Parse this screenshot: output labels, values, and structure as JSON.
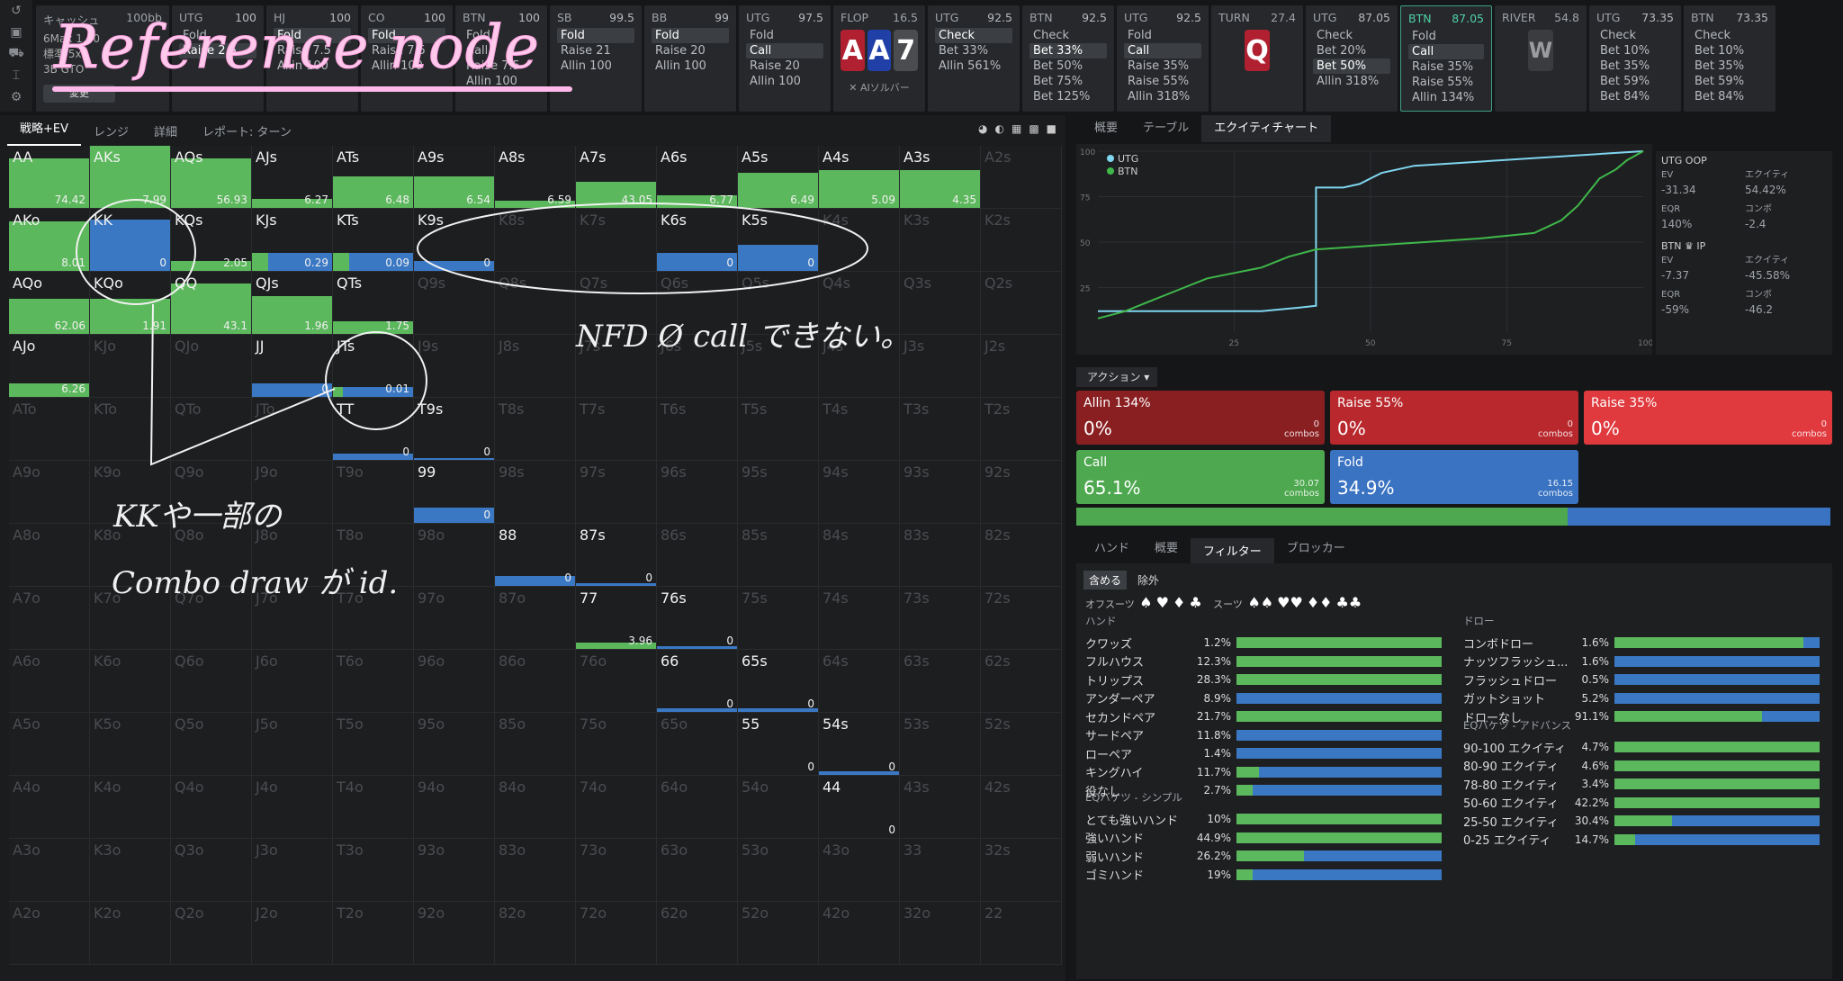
{
  "title_annotation": "Reference node",
  "handwritten_notes": [
    "NFD Ø call できない。",
    "KKや一部の",
    "Combo draw が id."
  ],
  "sidebar_icons": [
    "undo-icon",
    "save-icon",
    "car-icon",
    "chart-icon",
    "settings-icon"
  ],
  "cash": {
    "label": "キャッシュ",
    "bb": "100bb",
    "lines": [
      "6Max  1.50",
      "標準  5x",
      "3B  GTO"
    ],
    "button": "変更"
  },
  "topbar": [
    {
      "pos": "UTG",
      "stack": "100",
      "actions": [
        {
          "t": "Fold",
          "s": false
        },
        {
          "t": "Raise 2.5",
          "s": true
        }
      ]
    },
    {
      "pos": "HJ",
      "stack": "100",
      "actions": [
        {
          "t": "Fold",
          "s": true
        },
        {
          "t": "Raise 7.5",
          "s": false
        },
        {
          "t": "Allin 100",
          "s": false
        }
      ]
    },
    {
      "pos": "CO",
      "stack": "100",
      "actions": [
        {
          "t": "Fold",
          "s": true
        },
        {
          "t": "Raise 7.5",
          "s": false
        },
        {
          "t": "Allin 100",
          "s": false
        }
      ]
    },
    {
      "pos": "BTN",
      "stack": "100",
      "actions": [
        {
          "t": "Fold",
          "s": false
        },
        {
          "t": "Call",
          "s": false
        },
        {
          "t": "Raise 7.5",
          "s": false
        },
        {
          "t": "Allin 100",
          "s": false
        }
      ]
    },
    {
      "pos": "SB",
      "stack": "99.5",
      "actions": [
        {
          "t": "Fold",
          "s": true
        },
        {
          "t": "Raise 21",
          "s": false
        },
        {
          "t": "Allin 100",
          "s": false
        }
      ]
    },
    {
      "pos": "BB",
      "stack": "99",
      "actions": [
        {
          "t": "Fold",
          "s": true
        },
        {
          "t": "Raise 20",
          "s": false
        },
        {
          "t": "Allin 100",
          "s": false
        }
      ]
    },
    {
      "pos": "UTG",
      "stack": "97.5",
      "actions": [
        {
          "t": "Fold",
          "s": false
        },
        {
          "t": "Call",
          "s": true
        },
        {
          "t": "Raise 20",
          "s": false
        },
        {
          "t": "Allin 100",
          "s": false
        }
      ]
    }
  ],
  "flop": {
    "label": "FLOP",
    "pot": "16.5",
    "cards": [
      "A",
      "A",
      "7"
    ],
    "ai": "AIソルバー"
  },
  "topbar2": [
    {
      "pos": "UTG",
      "stack": "92.5",
      "actions": [
        {
          "t": "Check",
          "s": true
        },
        {
          "t": "Bet 33%",
          "s": false
        },
        {
          "t": "Allin 561%",
          "s": false
        }
      ]
    },
    {
      "pos": "BTN",
      "stack": "92.5",
      "actions": [
        {
          "t": "Check",
          "s": false
        },
        {
          "t": "Bet 33%",
          "s": true
        },
        {
          "t": "Bet 50%",
          "s": false
        },
        {
          "t": "Bet 75%",
          "s": false
        },
        {
          "t": "Bet 125%",
          "s": false
        }
      ]
    },
    {
      "pos": "UTG",
      "stack": "92.5",
      "actions": [
        {
          "t": "Fold",
          "s": false
        },
        {
          "t": "Call",
          "s": true
        },
        {
          "t": "Raise 35%",
          "s": false
        },
        {
          "t": "Raise 55%",
          "s": false
        },
        {
          "t": "Allin 318%",
          "s": false
        }
      ]
    }
  ],
  "turn": {
    "label": "TURN",
    "pot": "27.4",
    "card": "Q"
  },
  "topbar3": [
    {
      "pos": "UTG",
      "stack": "87.05",
      "active": false,
      "actions": [
        {
          "t": "Check",
          "s": false
        },
        {
          "t": "Bet 20%",
          "s": false
        },
        {
          "t": "Bet 50%",
          "s": true
        },
        {
          "t": "Allin 318%",
          "s": false
        }
      ]
    },
    {
      "pos": "BTN",
      "stack": "87.05",
      "active": true,
      "actions": [
        {
          "t": "Fold",
          "s": false
        },
        {
          "t": "Call",
          "s": true
        },
        {
          "t": "Raise 35%",
          "s": false
        },
        {
          "t": "Raise 55%",
          "s": false
        },
        {
          "t": "Allin 134%",
          "s": false
        }
      ]
    }
  ],
  "river": {
    "label": "RIVER",
    "pot": "54.8",
    "card": "W"
  },
  "topbar4": [
    {
      "pos": "UTG",
      "stack": "73.35",
      "actions": [
        {
          "t": "Check",
          "s": false
        },
        {
          "t": "Bet 10%",
          "s": false
        },
        {
          "t": "Bet 35%",
          "s": false
        },
        {
          "t": "Bet 59%",
          "s": false
        },
        {
          "t": "Bet 84%",
          "s": false
        }
      ]
    },
    {
      "pos": "BTN",
      "stack": "73.35",
      "actions": [
        {
          "t": "Check",
          "s": false
        },
        {
          "t": "Bet 10%",
          "s": false
        },
        {
          "t": "Bet 35%",
          "s": false
        },
        {
          "t": "Bet 59%",
          "s": false
        },
        {
          "t": "Bet 84%",
          "s": false
        }
      ]
    }
  ],
  "left_tabs": [
    "戦略+EV",
    "レンジ",
    "詳細",
    "レポート: ターン"
  ],
  "grid": [
    [
      "AA",
      "AKs",
      "AQs",
      "AJs",
      "ATs",
      "A9s",
      "A8s",
      "A7s",
      "A6s",
      "A5s",
      "A4s",
      "A3s",
      "A2s"
    ],
    [
      "AKo",
      "KK",
      "KQs",
      "KJs",
      "KTs",
      "K9s",
      "K8s",
      "K7s",
      "K6s",
      "K5s",
      "K4s",
      "K3s",
      "K2s"
    ],
    [
      "AQo",
      "KQo",
      "QQ",
      "QJs",
      "QTs",
      "Q9s",
      "Q8s",
      "Q7s",
      "Q6s",
      "Q5s",
      "Q4s",
      "Q3s",
      "Q2s"
    ],
    [
      "AJo",
      "KJo",
      "QJo",
      "JJ",
      "JTs",
      "J9s",
      "J8s",
      "J7s",
      "J6s",
      "J5s",
      "J4s",
      "J3s",
      "J2s"
    ],
    [
      "ATo",
      "KTo",
      "QTo",
      "JTo",
      "TT",
      "T9s",
      "T8s",
      "T7s",
      "T6s",
      "T5s",
      "T4s",
      "T3s",
      "T2s"
    ],
    [
      "A9o",
      "K9o",
      "Q9o",
      "J9o",
      "T9o",
      "99",
      "98s",
      "97s",
      "96s",
      "95s",
      "94s",
      "93s",
      "92s"
    ],
    [
      "A8o",
      "K8o",
      "Q8o",
      "J8o",
      "T8o",
      "98o",
      "88",
      "87s",
      "86s",
      "85s",
      "84s",
      "83s",
      "82s"
    ],
    [
      "A7o",
      "K7o",
      "Q7o",
      "J7o",
      "T7o",
      "97o",
      "87o",
      "77",
      "76s",
      "75s",
      "74s",
      "73s",
      "72s"
    ],
    [
      "A6o",
      "K6o",
      "Q6o",
      "J6o",
      "T6o",
      "96o",
      "86o",
      "76o",
      "66",
      "65s",
      "64s",
      "63s",
      "62s"
    ],
    [
      "A5o",
      "K5o",
      "Q5o",
      "J5o",
      "T5o",
      "95o",
      "85o",
      "75o",
      "65o",
      "55",
      "54s",
      "53s",
      "52s"
    ],
    [
      "A4o",
      "K4o",
      "Q4o",
      "J4o",
      "T4o",
      "94o",
      "84o",
      "74o",
      "64o",
      "54o",
      "44",
      "43s",
      "42s"
    ],
    [
      "A3o",
      "K3o",
      "Q3o",
      "J3o",
      "T3o",
      "93o",
      "83o",
      "73o",
      "63o",
      "53o",
      "43o",
      "33",
      "32s"
    ],
    [
      "A2o",
      "K2o",
      "Q2o",
      "J2o",
      "T2o",
      "92o",
      "82o",
      "72o",
      "62o",
      "52o",
      "42o",
      "32o",
      "22"
    ]
  ],
  "cell_data": {
    "AA": {
      "num": "74.42",
      "g": 1.0,
      "h": 0.78
    },
    "AKs": {
      "num": "7.99",
      "g": 1.0,
      "h": 1.0
    },
    "AQs": {
      "num": "56.93",
      "g": 1.0,
      "h": 0.78
    },
    "AJs": {
      "num": "6.27",
      "g": 1.0,
      "h": 0.14
    },
    "ATs": {
      "num": "6.48",
      "g": 1.0,
      "h": 0.5
    },
    "A9s": {
      "num": "6.54",
      "g": 1.0,
      "h": 0.5
    },
    "A8s": {
      "num": "6.59",
      "g": 1.0,
      "h": 0.12
    },
    "A7s": {
      "num": "43.05",
      "g": 1.0,
      "h": 0.42
    },
    "A6s": {
      "num": "6.77",
      "g": 1.0,
      "h": 0.2
    },
    "A5s": {
      "num": "6.49",
      "g": 1.0,
      "h": 0.55
    },
    "A4s": {
      "num": "5.09",
      "g": 1.0,
      "h": 0.6
    },
    "A3s": {
      "num": "4.35",
      "g": 1.0,
      "h": 0.6
    },
    "AKo": {
      "num": "8.01",
      "g": 1.0,
      "h": 0.78
    },
    "KK": {
      "num": "0",
      "g": 0.0,
      "h": 0.82
    },
    "KQs": {
      "num": "2.05",
      "g": 1.0,
      "h": 0.15
    },
    "KJs": {
      "num": "0.29",
      "g": 0.2,
      "h": 0.28
    },
    "KTs": {
      "num": "0.09",
      "g": 0.2,
      "h": 0.28
    },
    "K9s": {
      "num": "0",
      "g": 0.0,
      "h": 0.16
    },
    "K6s": {
      "num": "0",
      "g": 0.0,
      "h": 0.28
    },
    "K5s": {
      "num": "0",
      "g": 0.0,
      "h": 0.42
    },
    "AQo": {
      "num": "62.06",
      "g": 1.0,
      "h": 0.55
    },
    "KQo": {
      "num": "1.91",
      "g": 1.0,
      "h": 0.55
    },
    "QQ": {
      "num": "43.1",
      "g": 1.0,
      "h": 0.8
    },
    "QJs": {
      "num": "1.96",
      "g": 1.0,
      "h": 0.6
    },
    "QTs": {
      "num": "1.75",
      "g": 1.0,
      "h": 0.2
    },
    "AJo": {
      "num": "6.26",
      "g": 1.0,
      "h": 0.22
    },
    "JJ": {
      "num": "0",
      "g": 0.0,
      "h": 0.22
    },
    "JTs": {
      "num": "0.01",
      "g": 0.12,
      "h": 0.16
    },
    "TT": {
      "num": "0",
      "g": 0.0,
      "h": 0.1
    },
    "T9s": {
      "num": "0",
      "g": 0.0,
      "h": 0.03
    },
    "99": {
      "num": "0",
      "g": 0.0,
      "h": 0.24
    },
    "88": {
      "num": "0",
      "g": 0.0,
      "h": 0.16
    },
    "87s": {
      "num": "0",
      "g": 0.0,
      "h": 0.04
    },
    "77": {
      "num": "3.96",
      "g": 1.0,
      "h": 0.1
    },
    "76s": {
      "num": "0",
      "g": 0.0,
      "h": 0.04
    },
    "66": {
      "num": "0",
      "g": 0.0,
      "h": 0.05
    },
    "65s": {
      "num": "0",
      "g": 0.0,
      "h": 0.05
    },
    "55": {
      "num": "0",
      "g": 0.0,
      "h": 0.0
    },
    "54s": {
      "num": "0",
      "g": 0.0,
      "h": 0.05
    },
    "44": {
      "num": "0",
      "g": 0.0,
      "h": 0.0
    }
  },
  "right_tabs": [
    "概要",
    "テーブル",
    "エクイティチャート"
  ],
  "chart_data": {
    "type": "line",
    "x_ticks": [
      "25",
      "50",
      "75",
      "100"
    ],
    "y_ticks": [
      "100",
      "75",
      "50",
      "25"
    ],
    "xlim": [
      0,
      100
    ],
    "ylim": [
      0,
      100
    ],
    "series": [
      {
        "name": "UTG",
        "color": "#7fd6f0",
        "points": [
          [
            0,
            12
          ],
          [
            20,
            12
          ],
          [
            30,
            12
          ],
          [
            37,
            14
          ],
          [
            40,
            15
          ],
          [
            40,
            80
          ],
          [
            45,
            80
          ],
          [
            48,
            82
          ],
          [
            52,
            88
          ],
          [
            58,
            92
          ],
          [
            100,
            100
          ]
        ]
      },
      {
        "name": "BTN",
        "color": "#3fb84a",
        "points": [
          [
            0,
            8
          ],
          [
            5,
            12
          ],
          [
            10,
            18
          ],
          [
            15,
            24
          ],
          [
            20,
            30
          ],
          [
            25,
            33
          ],
          [
            30,
            36
          ],
          [
            35,
            42
          ],
          [
            40,
            46
          ],
          [
            45,
            47
          ],
          [
            50,
            48
          ],
          [
            60,
            50
          ],
          [
            70,
            52
          ],
          [
            80,
            55
          ],
          [
            85,
            62
          ],
          [
            88,
            70
          ],
          [
            92,
            85
          ],
          [
            95,
            90
          ],
          [
            97,
            95
          ],
          [
            100,
            100
          ]
        ]
      }
    ]
  },
  "utg_stats": {
    "title": "UTG  OOP",
    "ev_label": "EV",
    "ev": "-31.34",
    "eq_label": "エクイティ",
    "eq": "54.42%",
    "eqr_label": "EQR",
    "eqr": "140%",
    "combo_label": "コンボ",
    "combo": "-2.4"
  },
  "btn_stats": {
    "title": "BTN ♛  IP",
    "ev_label": "EV",
    "ev": "-7.37",
    "eq_label": "エクイティ",
    "eq": "-45.58%",
    "eqr_label": "EQR",
    "eqr": "-59%",
    "combo_label": "コンボ",
    "combo": "-46.2"
  },
  "action_header": "アクション",
  "actions": [
    {
      "name": "Allin 134%",
      "pct": "0%",
      "combos": "0",
      "combos_label": "combos",
      "color": "#8a1f22"
    },
    {
      "name": "Raise 55%",
      "pct": "0%",
      "combos": "0",
      "combos_label": "combos",
      "color": "#b8282d"
    },
    {
      "name": "Raise 35%",
      "pct": "0%",
      "combos": "0",
      "combos_label": "combos",
      "color": "#e0393e"
    },
    {
      "name": "Call",
      "pct": "65.1%",
      "combos": "30.07",
      "combos_label": "combos",
      "color": "#4ea84f"
    },
    {
      "name": "Fold",
      "pct": "34.9%",
      "combos": "16.15",
      "combos_label": "combos",
      "color": "#3a73c2"
    }
  ],
  "mix": {
    "call": 65.1,
    "fold": 34.9
  },
  "filter_tabs": [
    "ハンド",
    "概要",
    "フィルター",
    "ブロッカー"
  ],
  "include": [
    "含める",
    "除外"
  ],
  "suits_labels": {
    "off": "オフスーツ",
    "suited": "スーツ"
  },
  "hands_section": "ハンド",
  "hands": [
    {
      "n": "クワッズ",
      "p": "1.2%",
      "g": 1.0
    },
    {
      "n": "フルハウス",
      "p": "12.3%",
      "g": 1.0
    },
    {
      "n": "トリップス",
      "p": "28.3%",
      "g": 1.0
    },
    {
      "n": "アンダーペア",
      "p": "8.9%",
      "g": 0.0
    },
    {
      "n": "セカンドペア",
      "p": "21.7%",
      "g": 1.0
    },
    {
      "n": "サードペア",
      "p": "11.8%",
      "g": 0.0
    },
    {
      "n": "ローペア",
      "p": "1.4%",
      "g": 0.0
    },
    {
      "n": "キングハイ",
      "p": "11.7%",
      "g": 0.11
    },
    {
      "n": "役なし",
      "p": "2.7%",
      "g": 0.08
    }
  ],
  "eq_simple_section": "EQバケツ - シンプル",
  "eq_simple": [
    {
      "n": "とても強いハンド",
      "p": "10%",
      "g": 1.0
    },
    {
      "n": "強いハンド",
      "p": "44.9%",
      "g": 1.0
    },
    {
      "n": "弱いハンド",
      "p": "26.2%",
      "g": 0.33
    },
    {
      "n": "ゴミハンド",
      "p": "19%",
      "g": 0.08
    }
  ],
  "draws_section": "ドロー",
  "draws": [
    {
      "n": "コンボドロー",
      "p": "1.6%",
      "g": 0.92
    },
    {
      "n": "ナッツフラッシュ...",
      "p": "1.6%",
      "g": 0.0
    },
    {
      "n": "フラッシュドロー",
      "p": "0.5%",
      "g": 0.0
    },
    {
      "n": "ガットショット",
      "p": "5.2%",
      "g": 0.0
    },
    {
      "n": "ドローなし",
      "p": "91.1%",
      "g": 0.72
    }
  ],
  "eq_adv_section": "EQバケツ - アドバンス",
  "eq_adv": [
    {
      "n": "90-100 エクイティ",
      "p": "4.7%",
      "g": 1.0
    },
    {
      "n": "80-90 エクイティ",
      "p": "4.6%",
      "g": 1.0
    },
    {
      "n": "78-80 エクイティ",
      "p": "3.4%",
      "g": 1.0
    },
    {
      "n": "50-60 エクイティ",
      "p": "42.2%",
      "g": 1.0
    },
    {
      "n": "25-50 エクイティ",
      "p": "30.4%",
      "g": 0.28
    },
    {
      "n": "0-25 エクイティ",
      "p": "14.7%",
      "g": 0.1
    }
  ]
}
